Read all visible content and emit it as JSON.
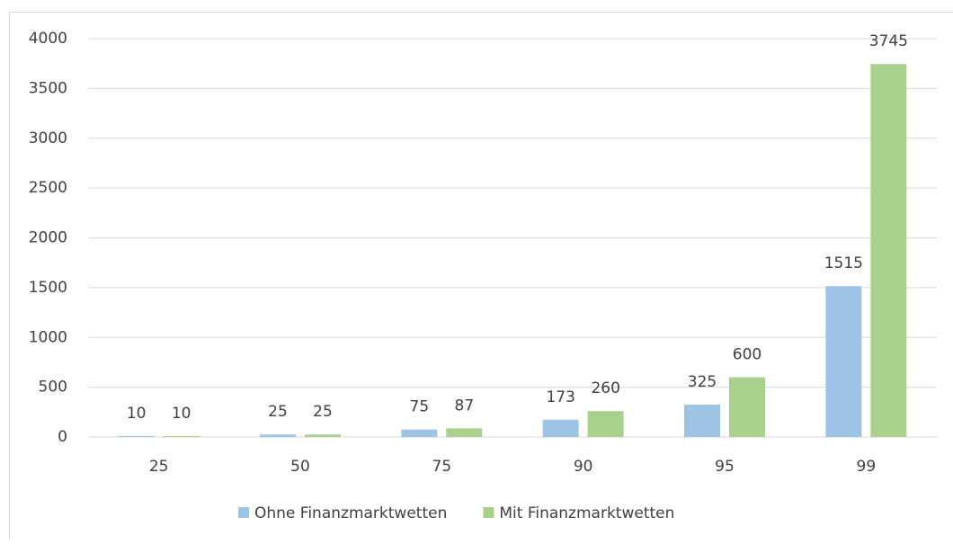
{
  "chart_data": {
    "type": "bar",
    "categories": [
      "25",
      "50",
      "75",
      "90",
      "95",
      "99"
    ],
    "series": [
      {
        "name": "Ohne Finanzmarktwetten",
        "color": "#9dc3e6",
        "values": [
          10,
          25,
          75,
          173,
          325,
          1515
        ]
      },
      {
        "name": "Mit Finanzmarktwetten",
        "color": "#a9d18e",
        "values": [
          10,
          25,
          87,
          260,
          600,
          3745
        ]
      }
    ],
    "ylim": [
      0,
      4000
    ],
    "yticks": [
      0,
      500,
      1000,
      1500,
      2000,
      2500,
      3000,
      3500,
      4000
    ],
    "grid": true,
    "legend": "bottom"
  }
}
